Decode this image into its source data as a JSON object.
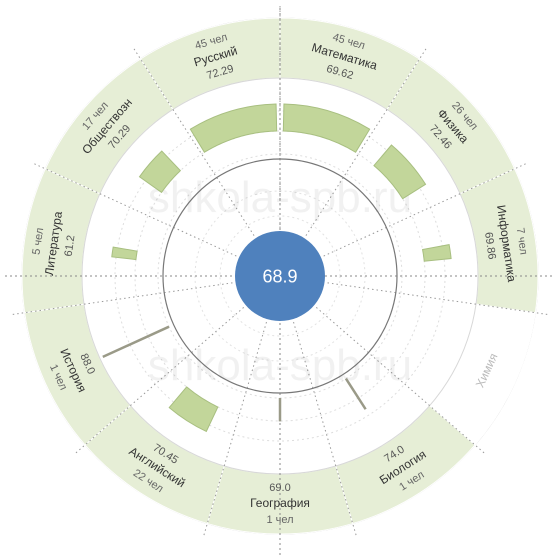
{
  "chart_data": {
    "type": "radial-bar",
    "center_value": "68.9",
    "watermark": "shkola-spb.ru",
    "subjects": [
      {
        "name": "Математика",
        "value": 69.62,
        "value_label": "69.62",
        "count_label": "45 чел",
        "active": true
      },
      {
        "name": "Физика",
        "value": 72.46,
        "value_label": "72.46",
        "count_label": "26 чел",
        "active": true
      },
      {
        "name": "Информатика",
        "value": 69.86,
        "value_label": "69.86",
        "count_label": "7 чел",
        "active": true
      },
      {
        "name": "Химия",
        "value": null,
        "value_label": "",
        "count_label": "",
        "active": false
      },
      {
        "name": "Биология",
        "value": 74.0,
        "value_label": "74.0",
        "count_label": "1 чел",
        "active": true
      },
      {
        "name": "География",
        "value": 69.0,
        "value_label": "69.0",
        "count_label": "1 чел",
        "active": true
      },
      {
        "name": "Английский",
        "value": 70.45,
        "value_label": "70.45",
        "count_label": "22 чел",
        "active": true
      },
      {
        "name": "История",
        "value": 88.0,
        "value_label": "88.0",
        "count_label": "1 чел",
        "active": true
      },
      {
        "name": "Литература",
        "value": 61.2,
        "value_label": "61.2",
        "count_label": "5 чел",
        "active": true
      },
      {
        "name": "Обществозн",
        "value": 70.29,
        "value_label": "70.29",
        "count_label": "17 чел",
        "active": true
      },
      {
        "name": "Русский",
        "value": 72.29,
        "value_label": "72.29",
        "count_label": "45 чел",
        "active": true
      }
    ],
    "counts": [
      45,
      26,
      7,
      0,
      1,
      1,
      22,
      1,
      5,
      17,
      45
    ],
    "colors": {
      "bar_fill": "#c2d69a",
      "bar_stroke": "#a8bf80",
      "ring_fill": "#e6eed6",
      "center_fill": "#4f81bd",
      "line": "#999999"
    }
  }
}
